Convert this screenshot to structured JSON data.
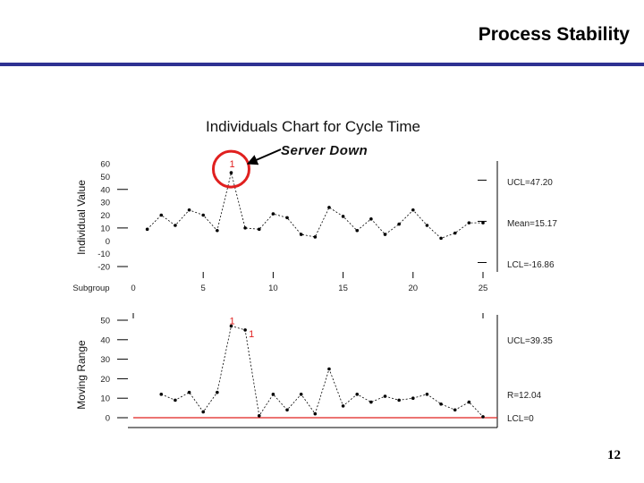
{
  "slide": {
    "title": "Process Stability",
    "page_number": "12"
  },
  "chart_data": [
    {
      "type": "line",
      "title": "Individuals Chart for Cycle Time",
      "ylabel": "Individual Value",
      "xlabel": "Subgroup",
      "x_ticks": [
        0,
        5,
        10,
        15,
        20,
        25
      ],
      "y_ticks": [
        60,
        50,
        40,
        30,
        20,
        10,
        0,
        -10,
        -20
      ],
      "ylim": [
        -20,
        60
      ],
      "x": [
        1,
        2,
        3,
        4,
        5,
        6,
        7,
        8,
        9,
        10,
        11,
        12,
        13,
        14,
        15,
        16,
        17,
        18,
        19,
        20,
        21,
        22,
        23,
        24,
        25
      ],
      "values": [
        9,
        20,
        12,
        24,
        20,
        8,
        53,
        10,
        9,
        21,
        18,
        5,
        3,
        26,
        19,
        8,
        17,
        5,
        13,
        24,
        12,
        2,
        6,
        14,
        14
      ],
      "out_of_control_points": [
        {
          "x": 7,
          "label": "1"
        }
      ],
      "control_lines": {
        "ucl": "UCL=47.20",
        "mean": "Mean=15.17",
        "lcl": "LCL=-16.86"
      },
      "annotation": "Server Down",
      "grid": false,
      "highlight_color": "#e0201f"
    },
    {
      "type": "line",
      "ylabel": "Moving Range",
      "y_ticks": [
        50,
        40,
        30,
        20,
        10,
        0
      ],
      "ylim": [
        0,
        50
      ],
      "x": [
        2,
        3,
        4,
        5,
        6,
        7,
        8,
        9,
        10,
        11,
        12,
        13,
        14,
        15,
        16,
        17,
        18,
        19,
        20,
        21,
        22,
        23,
        24,
        25
      ],
      "values": [
        12,
        9,
        13,
        3,
        13,
        47,
        45,
        1,
        12,
        4,
        12,
        2,
        25,
        6,
        12,
        8,
        11,
        9,
        10,
        12,
        7,
        4,
        8,
        0.5
      ],
      "out_of_control_points": [
        {
          "x": 7,
          "label": "1"
        },
        {
          "x": 8,
          "label": "1"
        }
      ],
      "control_lines": {
        "ucl": "UCL=39.35",
        "mean": "R=12.04",
        "lcl": "LCL=0"
      },
      "lcl_color": "#e0201f",
      "grid": false
    }
  ]
}
